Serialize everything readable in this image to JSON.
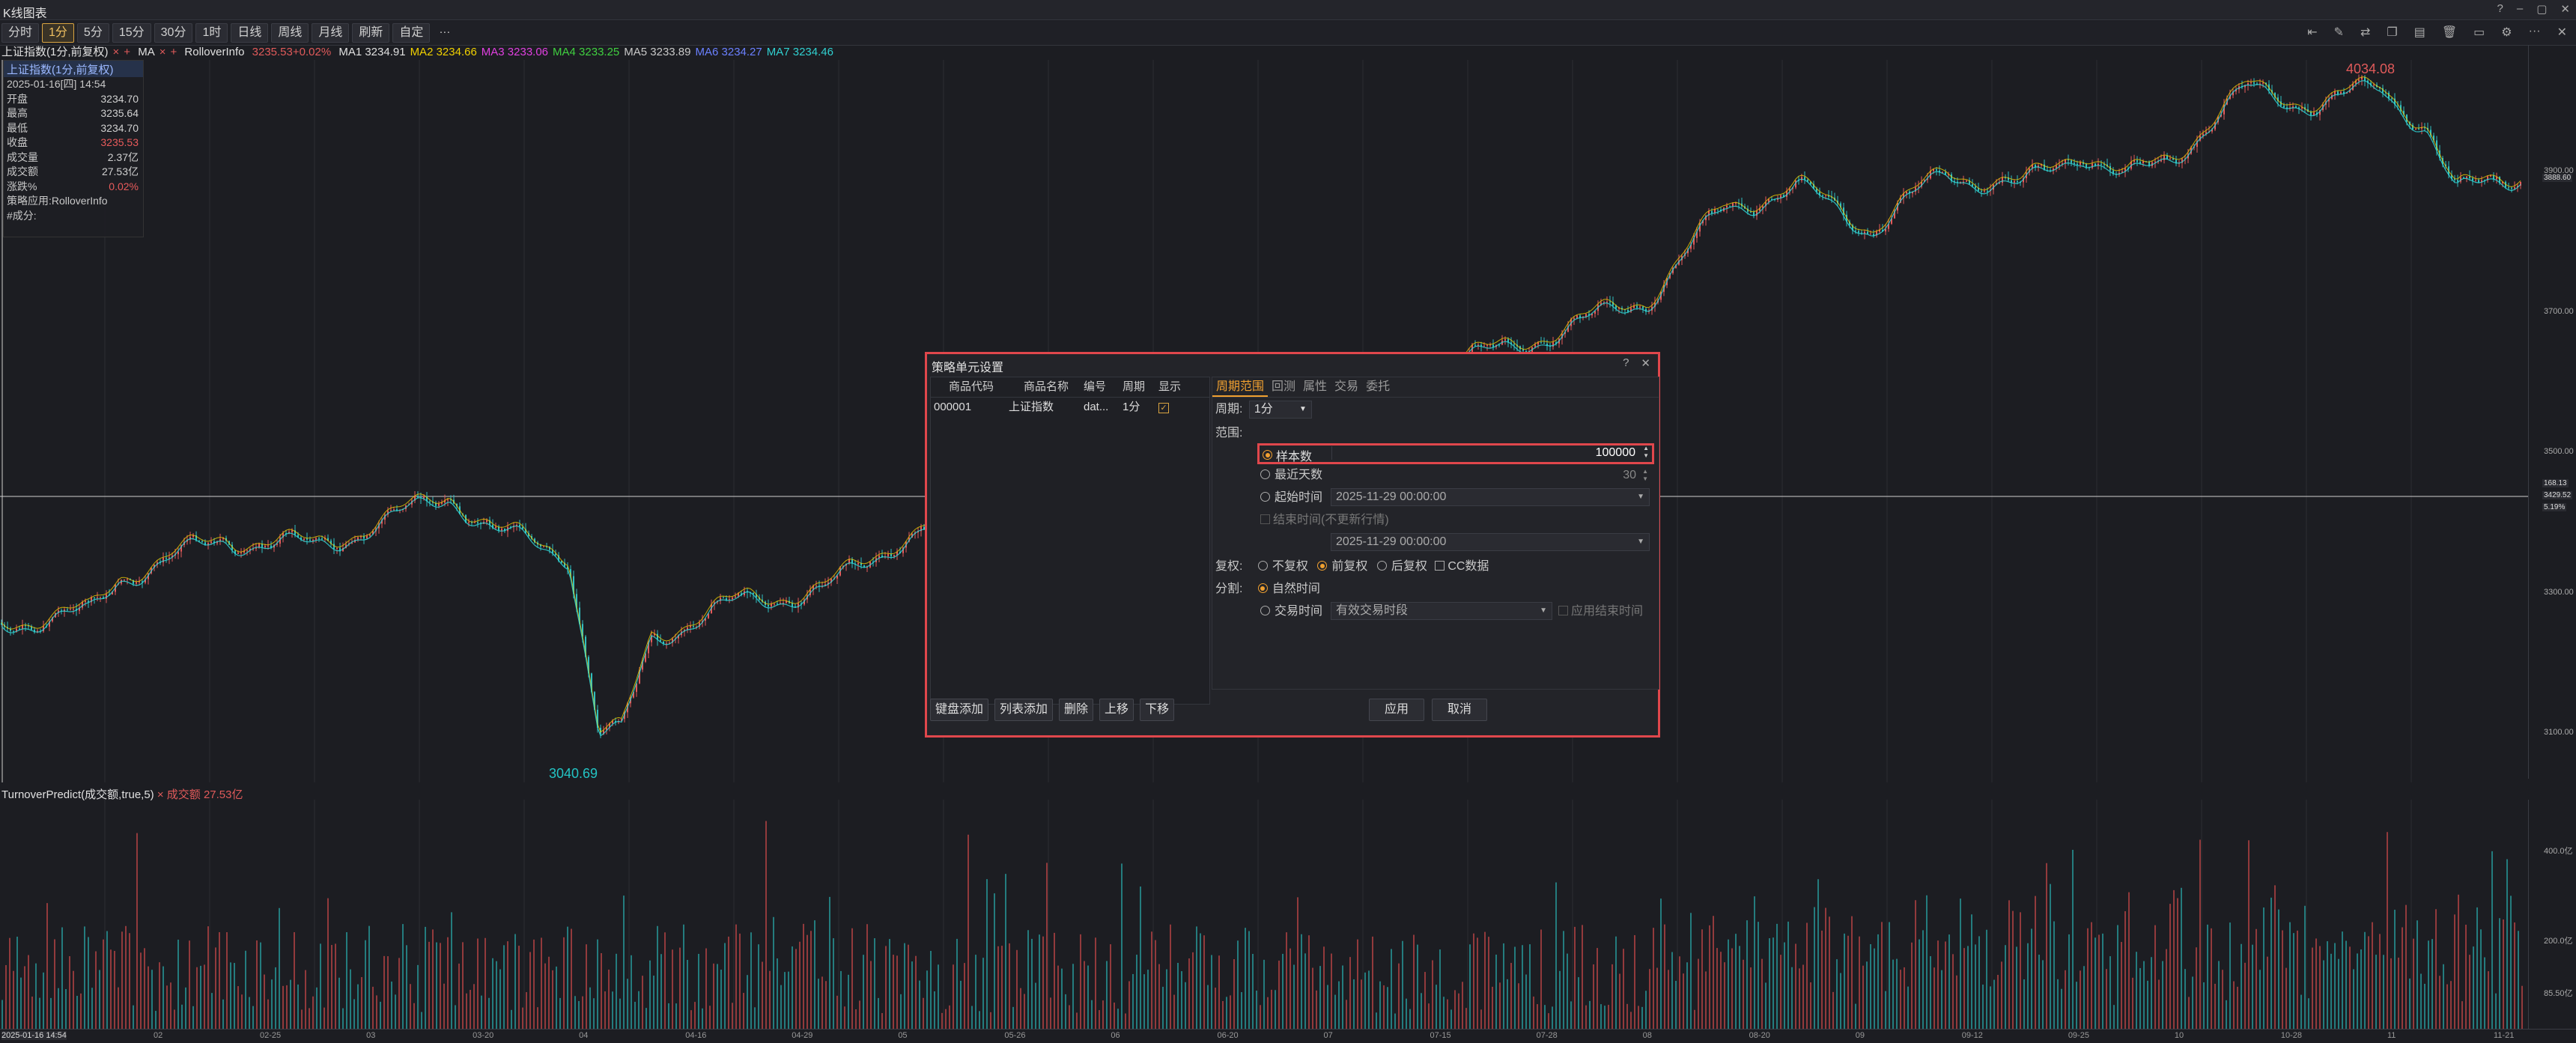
{
  "window": {
    "title": "K线图表"
  },
  "toolbar": {
    "periods": [
      "分时",
      "1分",
      "5分",
      "15分",
      "30分",
      "1时",
      "日线",
      "周线",
      "月线",
      "刷新",
      "自定"
    ],
    "active_index": 1,
    "more": "···"
  },
  "legend": {
    "symbol": "上证指数(1分,前复权)",
    "ma_label": "MA",
    "rollover_label": "RolloverInfo",
    "price_change": "3235.53+0.02%",
    "mas": [
      {
        "label": "MA1 3234.91",
        "color": "#e0e0e0"
      },
      {
        "label": "MA2 3234.66",
        "color": "#f0d000"
      },
      {
        "label": "MA3 3233.06",
        "color": "#e040e0"
      },
      {
        "label": "MA4 3233.25",
        "color": "#40d040"
      },
      {
        "label": "MA5 3233.89",
        "color": "#c8c8c8"
      },
      {
        "label": "MA6 3234.27",
        "color": "#6a80ff"
      },
      {
        "label": "MA7 3234.46",
        "color": "#30d0d0"
      }
    ]
  },
  "info": {
    "header": "上证指数(1分,前复权)",
    "datetime": "2025-01-16[四] 14:54",
    "rows": [
      {
        "k": "开盘",
        "v": "3234.70"
      },
      {
        "k": "最高",
        "v": "3235.64"
      },
      {
        "k": "最低",
        "v": "3234.70"
      },
      {
        "k": "收盘",
        "v": "3235.53",
        "red": true
      },
      {
        "k": "成交量",
        "v": "2.37亿"
      },
      {
        "k": "成交额",
        "v": "27.53亿"
      },
      {
        "k": "涨跌%",
        "v": "0.02%",
        "red": true
      }
    ],
    "strategy": "策略应用:RolloverInfo",
    "component": "#成分:"
  },
  "price_axis": {
    "ticks": [
      "3900.00",
      "3700.00",
      "3500.00",
      "3300.00",
      "3100.00"
    ],
    "current": "3888.60",
    "crosshair": [
      "168.13",
      "3429.52",
      "5.19%"
    ]
  },
  "chart_marks": {
    "high": "4034.08",
    "low": "3040.69"
  },
  "volume": {
    "legend": "TurnoverPredict(成交额,true,5)",
    "value_label": "成交额 27.53亿",
    "ticks": [
      "400.0亿",
      "200.0亿",
      "85.50亿"
    ]
  },
  "date_axis": {
    "first": "2025-01-16 14:54",
    "ticks": [
      "02",
      "02-25",
      "03",
      "03-20",
      "04",
      "04-16",
      "04-29",
      "05",
      "05-26",
      "06",
      "06-20",
      "07",
      "07-15",
      "07-28",
      "08",
      "08-20",
      "09",
      "09-12",
      "09-25",
      "10",
      "10-28",
      "11",
      "11-21"
    ]
  },
  "dialog": {
    "title": "策略单元设置",
    "table": {
      "headers": [
        "商品代码",
        "商品名称",
        "编号",
        "周期",
        "显示"
      ],
      "rows": [
        [
          "000001",
          "上证指数",
          "dat...",
          "1分"
        ]
      ]
    },
    "left_buttons": [
      "键盘添加",
      "列表添加",
      "删除",
      "上移",
      "下移"
    ],
    "tabs": [
      "周期范围",
      "回测",
      "属性",
      "交易",
      "委托"
    ],
    "period_label": "周期:",
    "period_value": "1分",
    "range_label": "范围:",
    "sample_label": "样本数",
    "sample_value": "100000",
    "recent_days_label": "最近天数",
    "recent_days_value": "30",
    "start_label": "起始时间",
    "start_value": "2025-11-29 00:00:00",
    "end_label": "结束时间(不更新行情)",
    "end_value": "2025-11-29 00:00:00",
    "adjust_label": "复权:",
    "adjust_opts": [
      "不复权",
      "前复权",
      "后复权"
    ],
    "cc_label": "CC数据",
    "split_label": "分割:",
    "natural_time": "自然时间",
    "trade_time": "交易时间",
    "trade_placeholder": "有效交易时段",
    "apply_end_label": "应用结束时间",
    "apply": "应用",
    "cancel": "取消"
  }
}
